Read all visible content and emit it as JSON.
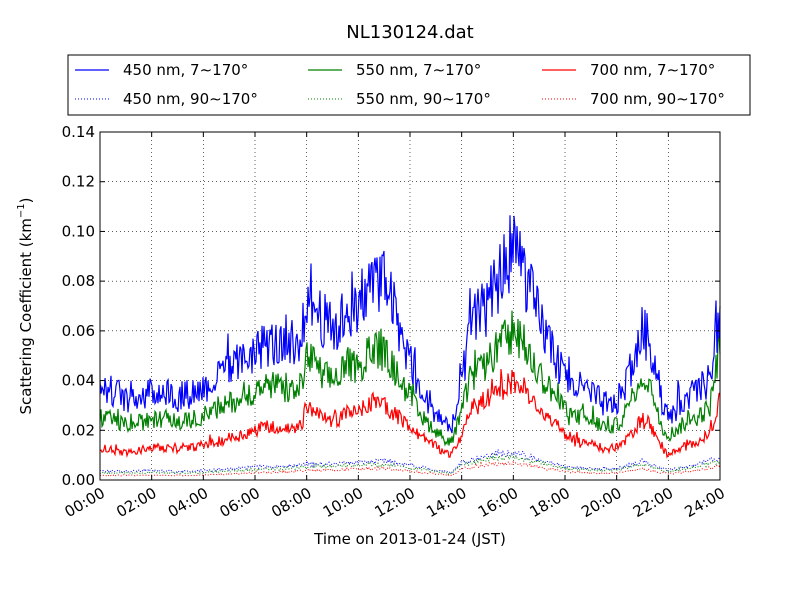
{
  "chart_data": {
    "type": "line",
    "title": "NL130124.dat",
    "xlabel": "Time on 2013-01-24 (JST)",
    "ylabel": "Scattering Coefficient (km",
    "ylabel_sup": "−1",
    "ylabel_end": ")",
    "xlim_hours": [
      0,
      24
    ],
    "ylim": [
      0,
      0.14
    ],
    "grid": true,
    "legend_position": "top",
    "x_tick_labels": [
      "00:00",
      "02:00",
      "04:00",
      "06:00",
      "08:00",
      "10:00",
      "12:00",
      "14:00",
      "16:00",
      "18:00",
      "20:00",
      "22:00",
      "24:00"
    ],
    "y_tick_labels": [
      "0.00",
      "0.02",
      "0.04",
      "0.06",
      "0.08",
      "0.10",
      "0.12",
      "0.14"
    ],
    "series": [
      {
        "name": "450 nm, 7∼170°",
        "color": "#0000ff",
        "style": "solid",
        "noise": 0.18,
        "hours": [
          0,
          0.5,
          1,
          1.5,
          2,
          2.5,
          3,
          3.5,
          4,
          4.5,
          5,
          5.5,
          6,
          6.5,
          7,
          7.5,
          7.8,
          8,
          8.3,
          8.6,
          9,
          9.3,
          9.6,
          10,
          10.4,
          10.8,
          11.2,
          11.6,
          12,
          12.4,
          12.8,
          13.2,
          13.6,
          14,
          14.3,
          14.6,
          15,
          15.4,
          15.8,
          16,
          16.4,
          16.8,
          17.2,
          17.6,
          18,
          18.4,
          18.8,
          19.2,
          19.6,
          20,
          20.4,
          20.8,
          21,
          21.3,
          21.6,
          21.8,
          22,
          22.4,
          22.8,
          23.2,
          23.6,
          24
        ],
        "values": [
          0.035,
          0.036,
          0.033,
          0.034,
          0.035,
          0.036,
          0.033,
          0.035,
          0.037,
          0.04,
          0.045,
          0.048,
          0.052,
          0.055,
          0.054,
          0.05,
          0.055,
          0.075,
          0.07,
          0.065,
          0.06,
          0.063,
          0.07,
          0.065,
          0.078,
          0.082,
          0.075,
          0.06,
          0.05,
          0.035,
          0.03,
          0.025,
          0.02,
          0.038,
          0.06,
          0.065,
          0.07,
          0.08,
          0.09,
          0.095,
          0.085,
          0.07,
          0.06,
          0.05,
          0.04,
          0.038,
          0.036,
          0.033,
          0.03,
          0.031,
          0.04,
          0.055,
          0.06,
          0.055,
          0.04,
          0.03,
          0.025,
          0.03,
          0.034,
          0.036,
          0.04,
          0.07
        ]
      },
      {
        "name": "550 nm, 7∼170°",
        "color": "#008000",
        "style": "solid",
        "noise": 0.15,
        "hours": [
          0,
          0.5,
          1,
          1.5,
          2,
          2.5,
          3,
          3.5,
          4,
          4.5,
          5,
          5.5,
          6,
          6.5,
          7,
          7.5,
          7.8,
          8,
          8.3,
          8.6,
          9,
          9.3,
          9.6,
          10,
          10.4,
          10.8,
          11.2,
          11.6,
          12,
          12.4,
          12.8,
          13.2,
          13.6,
          14,
          14.3,
          14.6,
          15,
          15.4,
          15.8,
          16,
          16.4,
          16.8,
          17.2,
          17.6,
          18,
          18.4,
          18.8,
          19.2,
          19.6,
          20,
          20.4,
          20.8,
          21,
          21.3,
          21.6,
          21.8,
          22,
          22.4,
          22.8,
          23.2,
          23.6,
          24
        ],
        "values": [
          0.025,
          0.024,
          0.022,
          0.023,
          0.024,
          0.025,
          0.023,
          0.024,
          0.026,
          0.028,
          0.031,
          0.033,
          0.036,
          0.038,
          0.037,
          0.035,
          0.038,
          0.05,
          0.047,
          0.043,
          0.04,
          0.042,
          0.047,
          0.044,
          0.052,
          0.053,
          0.048,
          0.04,
          0.034,
          0.025,
          0.022,
          0.018,
          0.015,
          0.027,
          0.04,
          0.043,
          0.047,
          0.053,
          0.058,
          0.06,
          0.055,
          0.046,
          0.04,
          0.034,
          0.028,
          0.026,
          0.025,
          0.023,
          0.021,
          0.022,
          0.028,
          0.038,
          0.042,
          0.038,
          0.028,
          0.021,
          0.018,
          0.021,
          0.024,
          0.026,
          0.029,
          0.055
        ]
      },
      {
        "name": "700 nm, 7∼170°",
        "color": "#ff0000",
        "style": "solid",
        "noise": 0.13,
        "hours": [
          0,
          0.5,
          1,
          1.5,
          2,
          2.5,
          3,
          3.5,
          4,
          4.5,
          5,
          5.5,
          6,
          6.5,
          7,
          7.5,
          7.8,
          8,
          8.3,
          8.6,
          9,
          9.3,
          9.6,
          10,
          10.4,
          10.8,
          11.2,
          11.6,
          12,
          12.4,
          12.8,
          13.2,
          13.6,
          14,
          14.3,
          14.6,
          15,
          15.4,
          15.8,
          16,
          16.4,
          16.8,
          17.2,
          17.6,
          18,
          18.4,
          18.8,
          19.2,
          19.6,
          20,
          20.4,
          20.8,
          21,
          21.3,
          21.6,
          21.8,
          22,
          22.4,
          22.8,
          23.2,
          23.6,
          24
        ],
        "values": [
          0.013,
          0.012,
          0.011,
          0.012,
          0.013,
          0.013,
          0.012,
          0.013,
          0.014,
          0.015,
          0.017,
          0.018,
          0.02,
          0.022,
          0.021,
          0.02,
          0.022,
          0.03,
          0.028,
          0.025,
          0.024,
          0.025,
          0.028,
          0.026,
          0.031,
          0.032,
          0.029,
          0.025,
          0.022,
          0.017,
          0.015,
          0.012,
          0.01,
          0.018,
          0.028,
          0.03,
          0.033,
          0.036,
          0.038,
          0.04,
          0.037,
          0.031,
          0.027,
          0.023,
          0.018,
          0.016,
          0.015,
          0.014,
          0.012,
          0.013,
          0.016,
          0.022,
          0.025,
          0.022,
          0.016,
          0.012,
          0.01,
          0.012,
          0.014,
          0.016,
          0.019,
          0.032
        ]
      },
      {
        "name": "450 nm, 90∼170°",
        "color": "#0000ff",
        "style": "dotted",
        "noise": 0.12,
        "hours": [
          0,
          1,
          2,
          3,
          4,
          5,
          6,
          7,
          8,
          9,
          10,
          11,
          12,
          13,
          13.6,
          14,
          15,
          16,
          17,
          18,
          19,
          20,
          21,
          22,
          23,
          24
        ],
        "values": [
          0.0035,
          0.0036,
          0.0037,
          0.0035,
          0.0037,
          0.0045,
          0.0052,
          0.0055,
          0.0062,
          0.0065,
          0.007,
          0.0075,
          0.006,
          0.004,
          0.003,
          0.007,
          0.01,
          0.011,
          0.008,
          0.0055,
          0.0045,
          0.0045,
          0.0075,
          0.004,
          0.006,
          0.009
        ]
      },
      {
        "name": "550 nm, 90∼170°",
        "color": "#008000",
        "style": "dotted",
        "noise": 0.12,
        "hours": [
          0,
          1,
          2,
          3,
          4,
          5,
          6,
          7,
          8,
          9,
          10,
          11,
          12,
          13,
          13.6,
          14,
          15,
          16,
          17,
          18,
          19,
          20,
          21,
          22,
          23,
          24
        ],
        "values": [
          0.0028,
          0.0028,
          0.0029,
          0.0028,
          0.0029,
          0.0036,
          0.0042,
          0.0045,
          0.0052,
          0.0055,
          0.006,
          0.0062,
          0.005,
          0.0033,
          0.0025,
          0.0058,
          0.0085,
          0.0092,
          0.0068,
          0.0046,
          0.0038,
          0.0038,
          0.0062,
          0.0033,
          0.005,
          0.0075
        ]
      },
      {
        "name": "700 nm, 90∼170°",
        "color": "#ff0000",
        "style": "dotted",
        "noise": 0.12,
        "hours": [
          0,
          1,
          2,
          3,
          4,
          5,
          6,
          7,
          8,
          9,
          10,
          11,
          12,
          13,
          13.6,
          14,
          15,
          16,
          17,
          18,
          19,
          20,
          21,
          22,
          23,
          24
        ],
        "values": [
          0.0018,
          0.0018,
          0.0019,
          0.0018,
          0.0019,
          0.0024,
          0.003,
          0.0032,
          0.0038,
          0.004,
          0.0044,
          0.0046,
          0.0036,
          0.0024,
          0.0018,
          0.0042,
          0.0062,
          0.0068,
          0.005,
          0.0034,
          0.0028,
          0.0028,
          0.0045,
          0.0024,
          0.0036,
          0.0055
        ]
      }
    ]
  }
}
